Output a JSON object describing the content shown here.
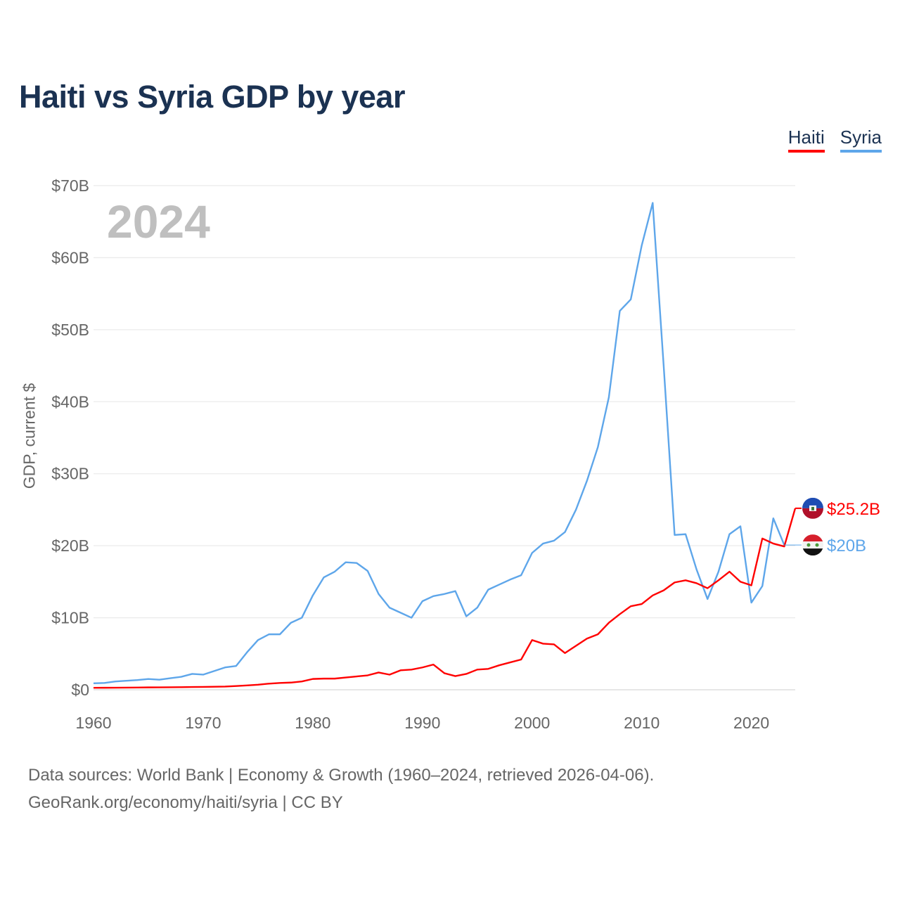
{
  "title": "Haiti vs Syria GDP by year",
  "year_watermark": "2024",
  "footer": {
    "line1": "Data sources: World Bank | Economy & Growth (1960–2024, retrieved 2026-04-06).",
    "line2": "GeoRank.org/economy/haiti/syria | CC BY"
  },
  "chart_data": {
    "type": "line",
    "title": "Haiti vs Syria GDP by year",
    "xlabel": "",
    "ylabel": "GDP, current $",
    "xlim": [
      1960,
      2024
    ],
    "ylim": [
      0,
      70
    ],
    "x_ticks": [
      "1960",
      "1970",
      "1980",
      "1990",
      "2000",
      "2010",
      "2020"
    ],
    "y_ticks": [
      "$0",
      "$10B",
      "$20B",
      "$30B",
      "$40B",
      "$50B",
      "$60B",
      "$70B"
    ],
    "grid": true,
    "legend_placement": "top-right",
    "units": "billions USD",
    "series": [
      {
        "name": "Haiti",
        "color": "#ff0000",
        "end_label": "$25.2B",
        "flag_icon": "haiti-flag",
        "start_year": 1960,
        "values": [
          0.27,
          0.28,
          0.29,
          0.3,
          0.31,
          0.33,
          0.34,
          0.35,
          0.36,
          0.38,
          0.4,
          0.42,
          0.45,
          0.52,
          0.6,
          0.7,
          0.85,
          0.95,
          1.0,
          1.15,
          1.5,
          1.55,
          1.55,
          1.7,
          1.85,
          2.0,
          2.4,
          2.1,
          2.7,
          2.8,
          3.1,
          3.5,
          2.3,
          1.9,
          2.2,
          2.8,
          2.9,
          3.4,
          3.8,
          4.2,
          6.9,
          6.4,
          6.3,
          5.1,
          6.1,
          7.1,
          7.7,
          9.3,
          10.5,
          11.6,
          11.9,
          13.1,
          13.8,
          14.9,
          15.2,
          14.8,
          14.1,
          15.2,
          16.4,
          15.0,
          14.5,
          21.0,
          20.3,
          19.9,
          25.2
        ]
      },
      {
        "name": "Syria",
        "color": "#5ea6ea",
        "end_label": "$20B",
        "flag_icon": "syria-flag",
        "start_year": 1960,
        "values": [
          0.9,
          0.95,
          1.15,
          1.25,
          1.35,
          1.5,
          1.4,
          1.6,
          1.8,
          2.2,
          2.1,
          2.6,
          3.1,
          3.3,
          5.2,
          6.9,
          7.7,
          7.7,
          9.3,
          10.0,
          13.1,
          15.6,
          16.4,
          17.7,
          17.6,
          16.5,
          13.3,
          11.4,
          10.7,
          10.0,
          12.3,
          13.0,
          13.3,
          13.7,
          10.2,
          11.4,
          13.9,
          14.6,
          15.3,
          15.9,
          19.0,
          20.3,
          20.7,
          21.9,
          25.0,
          29.0,
          33.7,
          40.6,
          52.6,
          54.2,
          61.7,
          67.6,
          45.0,
          21.5,
          21.6,
          16.7,
          12.6,
          16.4,
          21.6,
          22.7,
          12.1,
          14.4,
          23.8,
          20.1
        ]
      }
    ]
  }
}
